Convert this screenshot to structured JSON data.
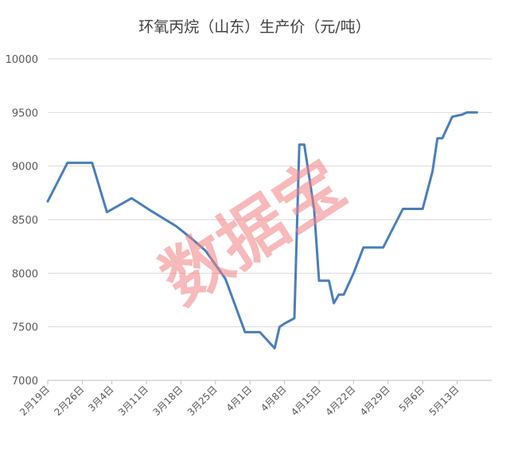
{
  "chart_data": {
    "type": "line",
    "title": "环氧丙烷（山东）生产价（元/吨）",
    "xlabel": "",
    "ylabel": "",
    "ylim": [
      7000,
      10000
    ],
    "yticks": [
      7000,
      7500,
      8000,
      8500,
      9000,
      9500,
      10000
    ],
    "xtick_labels": [
      "2月19日",
      "2月26日",
      "3月4日",
      "3月11日",
      "3月18日",
      "3月25日",
      "4月1日",
      "4月8日",
      "4月15日",
      "4月22日",
      "4月29日",
      "5月6日",
      "5月13日"
    ],
    "x_start": "2月19日",
    "x_end": "5月20日",
    "series_color": "#4a7ebb",
    "grid": "horizontal",
    "legend": "none",
    "series": [
      {
        "x": [
          "2月19日",
          "2月23日",
          "2月28日",
          "3月3日",
          "3月8日",
          "3月12日",
          "3月17日",
          "3月20日",
          "3月23日",
          "3月27日",
          "3月31日",
          "4月3日",
          "4月6日",
          "4月7日",
          "4月8日",
          "4月10日",
          "4月11日",
          "4月12日",
          "4月14日",
          "4月15日",
          "4月17日",
          "4月18日",
          "4月19日",
          "4月20日",
          "4月21日",
          "4月22日",
          "4月24日",
          "4月28日",
          "5月2日",
          "5月6日",
          "5月8日",
          "5月9日",
          "5月10日",
          "5月12日",
          "5月14日",
          "5月15日",
          "5月16日",
          "5月17日"
        ],
        "y": [
          8670,
          9030,
          9030,
          8570,
          8700,
          8580,
          8440,
          8330,
          8210,
          7950,
          7450,
          7450,
          7300,
          7500,
          7530,
          7580,
          9200,
          9200,
          8600,
          7930,
          7930,
          7720,
          7800,
          7800,
          7900,
          8000,
          8240,
          8240,
          8600,
          8600,
          8950,
          9260,
          9260,
          9460,
          9480,
          9500,
          9500,
          9500
        ]
      }
    ]
  },
  "watermark": "数据宝"
}
